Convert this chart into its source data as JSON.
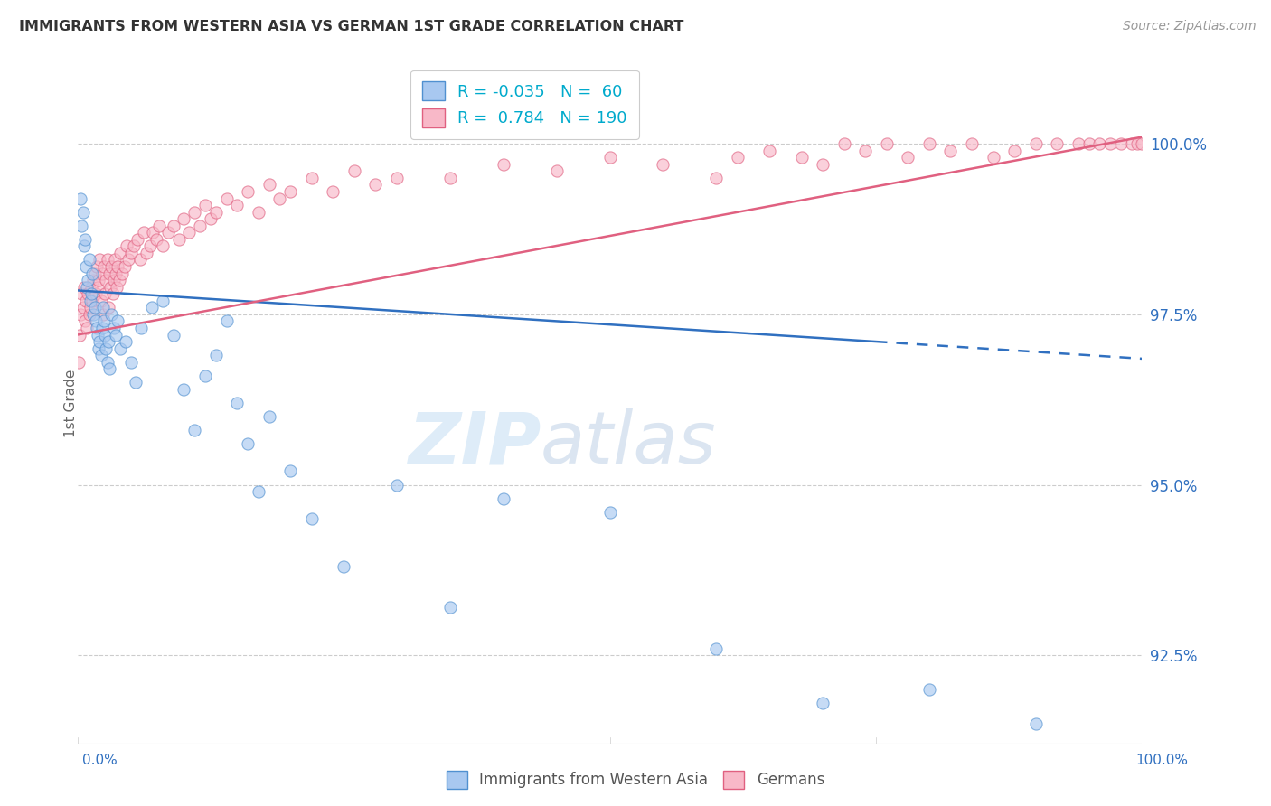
{
  "title": "IMMIGRANTS FROM WESTERN ASIA VS GERMAN 1ST GRADE CORRELATION CHART",
  "source": "Source: ZipAtlas.com",
  "ylabel": "1st Grade",
  "right_yticks": [
    92.5,
    95.0,
    97.5,
    100.0
  ],
  "xlim": [
    0.0,
    100.0
  ],
  "ylim": [
    91.2,
    101.2
  ],
  "legend_blue_r": "-0.035",
  "legend_blue_n": "60",
  "legend_pink_r": "0.784",
  "legend_pink_n": "190",
  "legend_label_blue": "Immigrants from Western Asia",
  "legend_label_pink": "Germans",
  "blue_fill_color": "#A8C8F0",
  "pink_fill_color": "#F8B8C8",
  "blue_edge_color": "#5090D0",
  "pink_edge_color": "#E06080",
  "blue_line_color": "#3070C0",
  "pink_line_color": "#E06080",
  "blue_line_start_y": 97.85,
  "blue_line_end_y": 96.85,
  "blue_line_solid_end_x": 75.0,
  "pink_line_start_y": 97.2,
  "pink_line_end_y": 100.1,
  "blue_scatter_x": [
    0.3,
    0.4,
    0.5,
    0.6,
    0.7,
    0.8,
    0.9,
    1.0,
    1.1,
    1.2,
    1.3,
    1.4,
    1.5,
    1.6,
    1.7,
    1.8,
    1.9,
    2.0,
    2.1,
    2.2,
    2.3,
    2.4,
    2.5,
    2.6,
    2.7,
    2.8,
    2.9,
    3.0,
    3.2,
    3.4,
    3.6,
    3.8,
    4.0,
    4.5,
    5.0,
    5.5,
    6.0,
    7.0,
    8.0,
    9.0,
    10.0,
    11.0,
    12.0,
    13.0,
    14.0,
    15.0,
    16.0,
    17.0,
    18.0,
    20.0,
    22.0,
    25.0,
    30.0,
    35.0,
    40.0,
    50.0,
    60.0,
    70.0,
    80.0,
    90.0
  ],
  "blue_scatter_y": [
    99.2,
    98.8,
    99.0,
    98.5,
    98.6,
    98.2,
    97.9,
    98.0,
    98.3,
    97.7,
    97.8,
    98.1,
    97.5,
    97.6,
    97.4,
    97.3,
    97.2,
    97.0,
    97.1,
    96.9,
    97.3,
    97.6,
    97.4,
    97.2,
    97.0,
    96.8,
    97.1,
    96.7,
    97.5,
    97.3,
    97.2,
    97.4,
    97.0,
    97.1,
    96.8,
    96.5,
    97.3,
    97.6,
    97.7,
    97.2,
    96.4,
    95.8,
    96.6,
    96.9,
    97.4,
    96.2,
    95.6,
    94.9,
    96.0,
    95.2,
    94.5,
    93.8,
    95.0,
    93.2,
    94.8,
    94.6,
    92.6,
    91.8,
    92.0,
    91.5
  ],
  "pink_scatter_x": [
    0.1,
    0.2,
    0.3,
    0.4,
    0.5,
    0.6,
    0.7,
    0.8,
    0.9,
    1.0,
    1.1,
    1.2,
    1.3,
    1.4,
    1.5,
    1.6,
    1.7,
    1.8,
    1.9,
    2.0,
    2.1,
    2.2,
    2.3,
    2.4,
    2.5,
    2.6,
    2.7,
    2.8,
    2.9,
    3.0,
    3.1,
    3.2,
    3.3,
    3.4,
    3.5,
    3.6,
    3.7,
    3.8,
    3.9,
    4.0,
    4.2,
    4.4,
    4.6,
    4.8,
    5.0,
    5.3,
    5.6,
    5.9,
    6.2,
    6.5,
    6.8,
    7.1,
    7.4,
    7.7,
    8.0,
    8.5,
    9.0,
    9.5,
    10.0,
    10.5,
    11.0,
    11.5,
    12.0,
    12.5,
    13.0,
    14.0,
    15.0,
    16.0,
    17.0,
    18.0,
    19.0,
    20.0,
    22.0,
    24.0,
    26.0,
    28.0,
    30.0,
    35.0,
    40.0,
    45.0,
    50.0,
    55.0,
    60.0,
    62.0,
    65.0,
    68.0,
    70.0,
    72.0,
    74.0,
    76.0,
    78.0,
    80.0,
    82.0,
    84.0,
    86.0,
    88.0,
    90.0,
    92.0,
    94.0,
    95.0,
    96.0,
    97.0,
    98.0,
    99.0,
    99.5,
    100.0
  ],
  "pink_scatter_y": [
    96.8,
    97.2,
    97.5,
    97.8,
    97.6,
    97.9,
    97.4,
    97.7,
    97.3,
    97.8,
    97.5,
    97.6,
    97.9,
    97.7,
    98.0,
    98.1,
    97.8,
    98.2,
    97.9,
    98.0,
    98.3,
    97.7,
    98.1,
    97.5,
    98.2,
    97.8,
    98.0,
    98.3,
    97.6,
    98.1,
    97.9,
    98.2,
    97.8,
    98.0,
    98.3,
    98.1,
    97.9,
    98.2,
    98.0,
    98.4,
    98.1,
    98.2,
    98.5,
    98.3,
    98.4,
    98.5,
    98.6,
    98.3,
    98.7,
    98.4,
    98.5,
    98.7,
    98.6,
    98.8,
    98.5,
    98.7,
    98.8,
    98.6,
    98.9,
    98.7,
    99.0,
    98.8,
    99.1,
    98.9,
    99.0,
    99.2,
    99.1,
    99.3,
    99.0,
    99.4,
    99.2,
    99.3,
    99.5,
    99.3,
    99.6,
    99.4,
    99.5,
    99.5,
    99.7,
    99.6,
    99.8,
    99.7,
    99.5,
    99.8,
    99.9,
    99.8,
    99.7,
    100.0,
    99.9,
    100.0,
    99.8,
    100.0,
    99.9,
    100.0,
    99.8,
    99.9,
    100.0,
    100.0,
    100.0,
    100.0,
    100.0,
    100.0,
    100.0,
    100.0,
    100.0,
    100.0
  ]
}
